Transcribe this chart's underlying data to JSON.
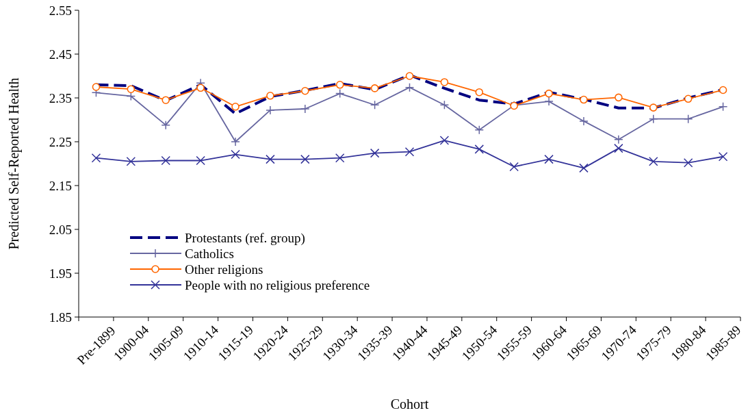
{
  "chart_data": {
    "type": "line",
    "xlabel": "Cohort",
    "ylabel": "Predicted Self-Reported Health",
    "categories": [
      "Pre-1899",
      "1900-04",
      "1905-09",
      "1910-14",
      "1915-19",
      "1920-24",
      "1925-29",
      "1930-34",
      "1935-39",
      "1940-44",
      "1945-49",
      "1950-54",
      "1955-59",
      "1960-64",
      "1965-69",
      "1970-74",
      "1975-79",
      "1980-84",
      "1985-89"
    ],
    "series": [
      {
        "name": "Protestants (ref. group)",
        "color": "#000080",
        "line_style": "dashed",
        "marker": "none",
        "values": [
          2.38,
          2.378,
          2.344,
          2.38,
          2.314,
          2.353,
          2.367,
          2.383,
          2.369,
          2.402,
          2.372,
          2.345,
          2.336,
          2.363,
          2.347,
          2.327,
          2.327,
          2.35,
          2.369
        ]
      },
      {
        "name": "Catholics",
        "color": "#6666a0",
        "line_style": "solid",
        "marker": "cross",
        "values": [
          2.362,
          2.354,
          2.288,
          2.384,
          2.25,
          2.322,
          2.325,
          2.36,
          2.334,
          2.374,
          2.334,
          2.277,
          2.333,
          2.342,
          2.297,
          2.255,
          2.302,
          2.302,
          2.33
        ]
      },
      {
        "name": "Other religions",
        "color": "#ff6600",
        "line_style": "solid",
        "marker": "circle",
        "values": [
          2.375,
          2.37,
          2.345,
          2.373,
          2.33,
          2.355,
          2.366,
          2.38,
          2.372,
          2.4,
          2.386,
          2.363,
          2.332,
          2.36,
          2.346,
          2.351,
          2.328,
          2.348,
          2.368
        ]
      },
      {
        "name": "People with no religious preference",
        "color": "#333399",
        "line_style": "solid",
        "marker": "x",
        "values": [
          2.213,
          2.205,
          2.207,
          2.207,
          2.221,
          2.21,
          2.21,
          2.213,
          2.224,
          2.227,
          2.253,
          2.233,
          2.193,
          2.21,
          2.19,
          2.235,
          2.205,
          2.202,
          2.216
        ]
      }
    ],
    "ylim": [
      1.85,
      2.55
    ],
    "yticks": [
      1.85,
      1.95,
      2.05,
      2.15,
      2.25,
      2.35,
      2.45,
      2.55
    ],
    "grid": false,
    "legend": "bottom left"
  }
}
